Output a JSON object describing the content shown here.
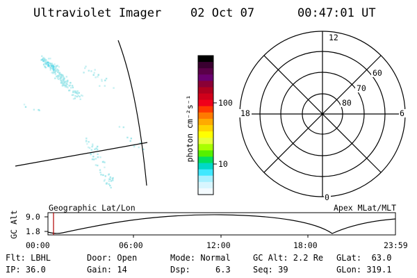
{
  "header": {
    "instrument": "Ultraviolet Imager",
    "date": "02 Oct 07",
    "time": "00:47:01 UT"
  },
  "colorbar": {
    "unit_label": "photon cm⁻²s⁻¹",
    "ticks": [
      "100",
      "10"
    ],
    "colors": [
      "#000000",
      "#3a0030",
      "#5a0048",
      "#6a0070",
      "#8a0036",
      "#b0001e",
      "#d0001a",
      "#f0001a",
      "#ff3a00",
      "#ff7a00",
      "#ffaa00",
      "#ffd400",
      "#ffff00",
      "#e6ff3a",
      "#a8ff00",
      "#54f000",
      "#00e060",
      "#00d8c8",
      "#40e8ff",
      "#a8f0ff",
      "#d8f6ff",
      "#f4fbff"
    ]
  },
  "polar_plot": {
    "mlt_labels": {
      "top": "12",
      "bottom": "0",
      "left": "18",
      "right": "6"
    },
    "lat_labels": [
      "60",
      "70",
      "80"
    ]
  },
  "timeline": {
    "y_label": "GC Alt",
    "y_ticks": [
      "9.0",
      "1.8"
    ],
    "left_caption": "Geographic Lat/Lon",
    "right_caption": "Apex MLat/MLT",
    "x_ticks": [
      "00:00",
      "06:00",
      "12:00",
      "18:00",
      "23:59"
    ]
  },
  "info": {
    "flt": "Flt: LBHL",
    "ip": "IP: 36.0",
    "door": "Door: Open",
    "gain": "Gain: 14",
    "mode": "Mode: Normal",
    "dsp": "Dsp:     6.3",
    "gc_alt": "GC Alt: 2.2 Re",
    "seq": "Seq: 39",
    "glat": "GLat:  63.0",
    "glon": "GLon: 319.1"
  },
  "colors": {
    "accent_marker": "#b00000",
    "aurora": "#9fe6ea",
    "aurora_bright": "#5fd8ea"
  }
}
